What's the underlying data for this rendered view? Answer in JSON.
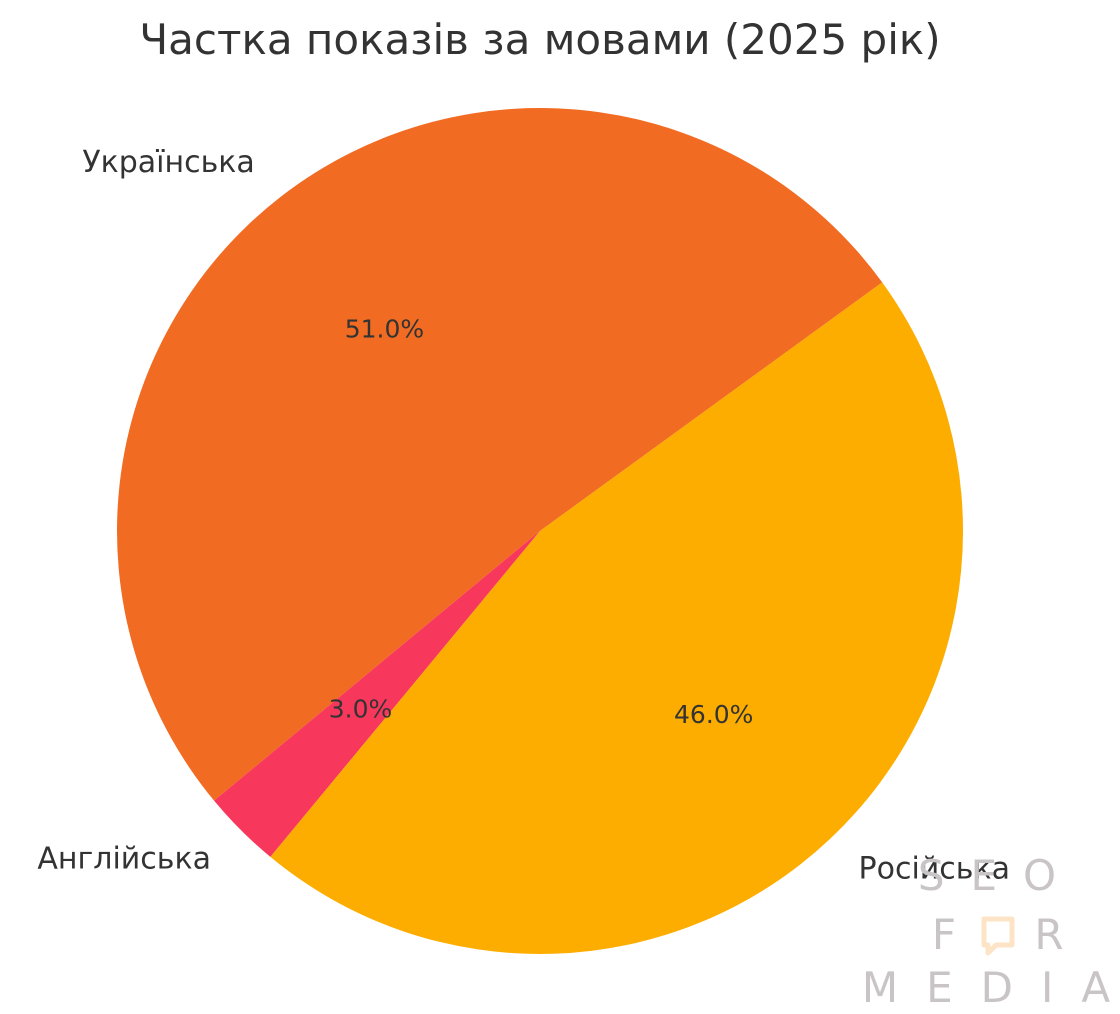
{
  "chart_data": {
    "type": "pie",
    "title": "Частка показів за мовами (2025 рік)",
    "categories": [
      "Українська",
      "Англійська",
      "Російська"
    ],
    "values": [
      51.0,
      3.0,
      46.0
    ],
    "value_labels": [
      "51.0%",
      "3.0%",
      "46.0%"
    ],
    "colors": [
      "#f26b22",
      "#f7375b",
      "#fdad00"
    ],
    "start_angle_deg": 36,
    "direction": "counterclockwise",
    "legend": "none"
  },
  "watermark": {
    "line1": "SEO",
    "line2_left": "F",
    "line2_right": "R",
    "line3": "MEDIA",
    "color": "#c9c4c6",
    "accent_color": "#fde4c6",
    "icon": "speech-bubble-icon"
  }
}
